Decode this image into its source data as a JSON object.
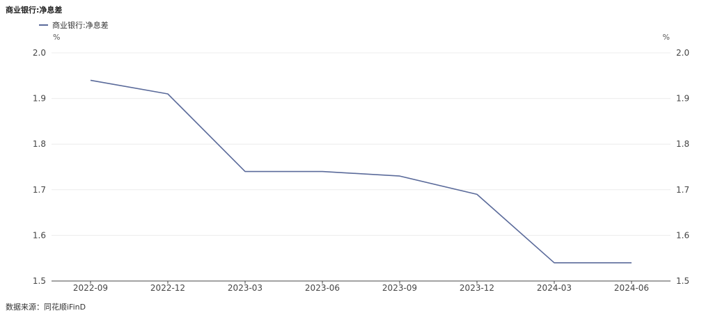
{
  "title": "商业银行:净息差",
  "source": "数据来源：同花顺iFinD",
  "chart_data": {
    "type": "line",
    "title": "商业银行:净息差",
    "x": [
      "2022-09",
      "2022-12",
      "2023-03",
      "2023-06",
      "2023-09",
      "2023-12",
      "2024-03",
      "2024-06"
    ],
    "series": [
      {
        "name": "商业银行:净息差",
        "values": [
          1.94,
          1.91,
          1.74,
          1.74,
          1.73,
          1.69,
          1.54,
          1.54
        ],
        "color": "#5a6a9a"
      }
    ],
    "ylim": [
      1.5,
      2.0
    ],
    "yticks": [
      "1.5",
      "1.6",
      "1.7",
      "1.8",
      "1.9",
      "2.0"
    ],
    "y_unit_left": "%",
    "y_unit_right": "%",
    "grid": true,
    "legend": "top-left"
  }
}
